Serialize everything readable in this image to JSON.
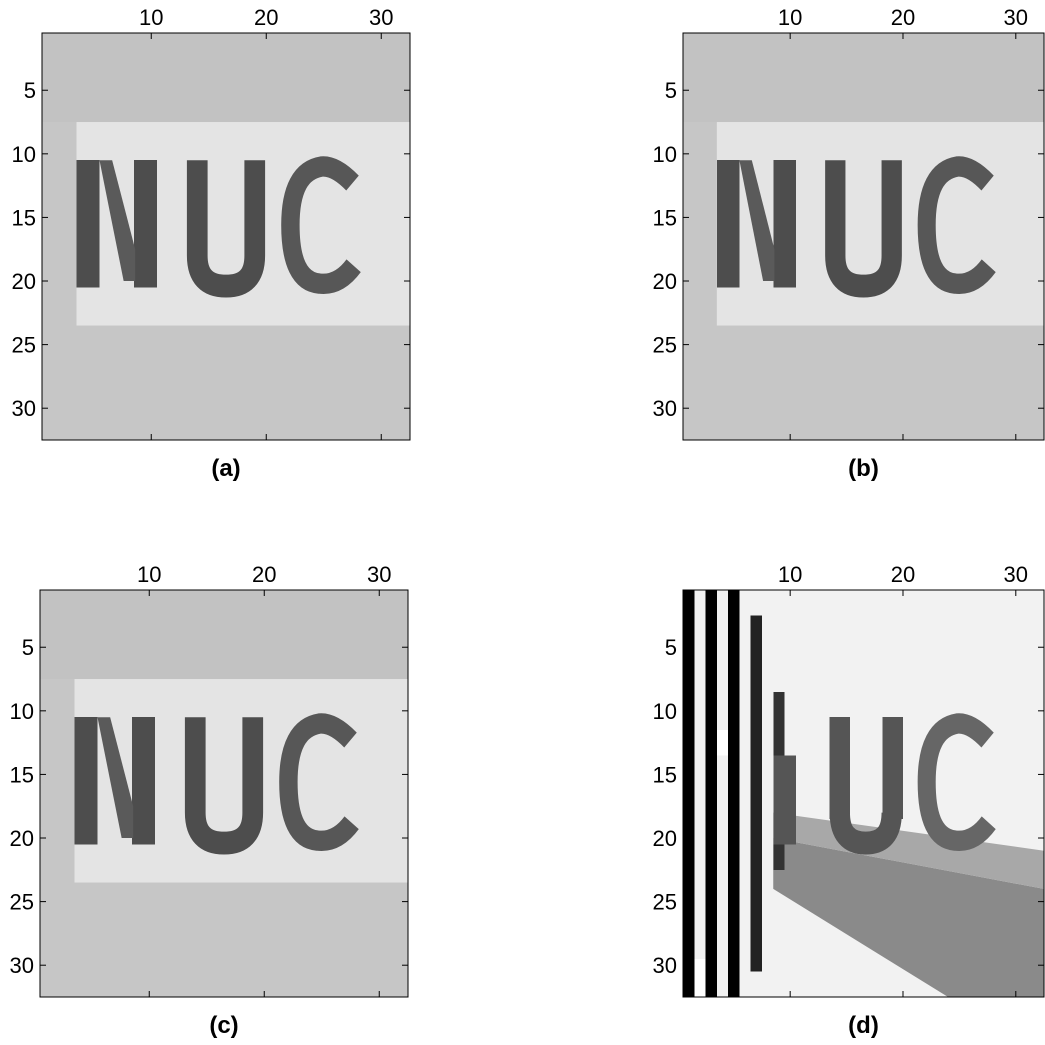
{
  "chart_data": [
    {
      "type": "image",
      "xlabel": "(a)",
      "xlim": [
        0.5,
        32.5
      ],
      "ylim": [
        0.5,
        32.5
      ],
      "xticks": [
        10,
        20,
        30
      ],
      "yticks": [
        5,
        10,
        15,
        20,
        25,
        30
      ]
    },
    {
      "type": "image",
      "xlabel": "(b)",
      "xlim": [
        0.5,
        32.5
      ],
      "ylim": [
        0.5,
        32.5
      ],
      "xticks": [
        10,
        20,
        30
      ],
      "yticks": [
        5,
        10,
        15,
        20,
        25,
        30
      ]
    },
    {
      "type": "image",
      "xlabel": "(c)",
      "xlim": [
        0.5,
        32.5
      ],
      "ylim": [
        0.5,
        32.5
      ],
      "xticks": [
        10,
        20,
        30
      ],
      "yticks": [
        5,
        10,
        15,
        20,
        25,
        30
      ]
    },
    {
      "type": "image",
      "xlabel": "(d)",
      "xlim": [
        0.5,
        32.5
      ],
      "ylim": [
        0.5,
        32.5
      ],
      "xticks": [
        10,
        20,
        30
      ],
      "yticks": [
        5,
        10,
        15,
        20,
        25,
        30
      ]
    }
  ]
}
